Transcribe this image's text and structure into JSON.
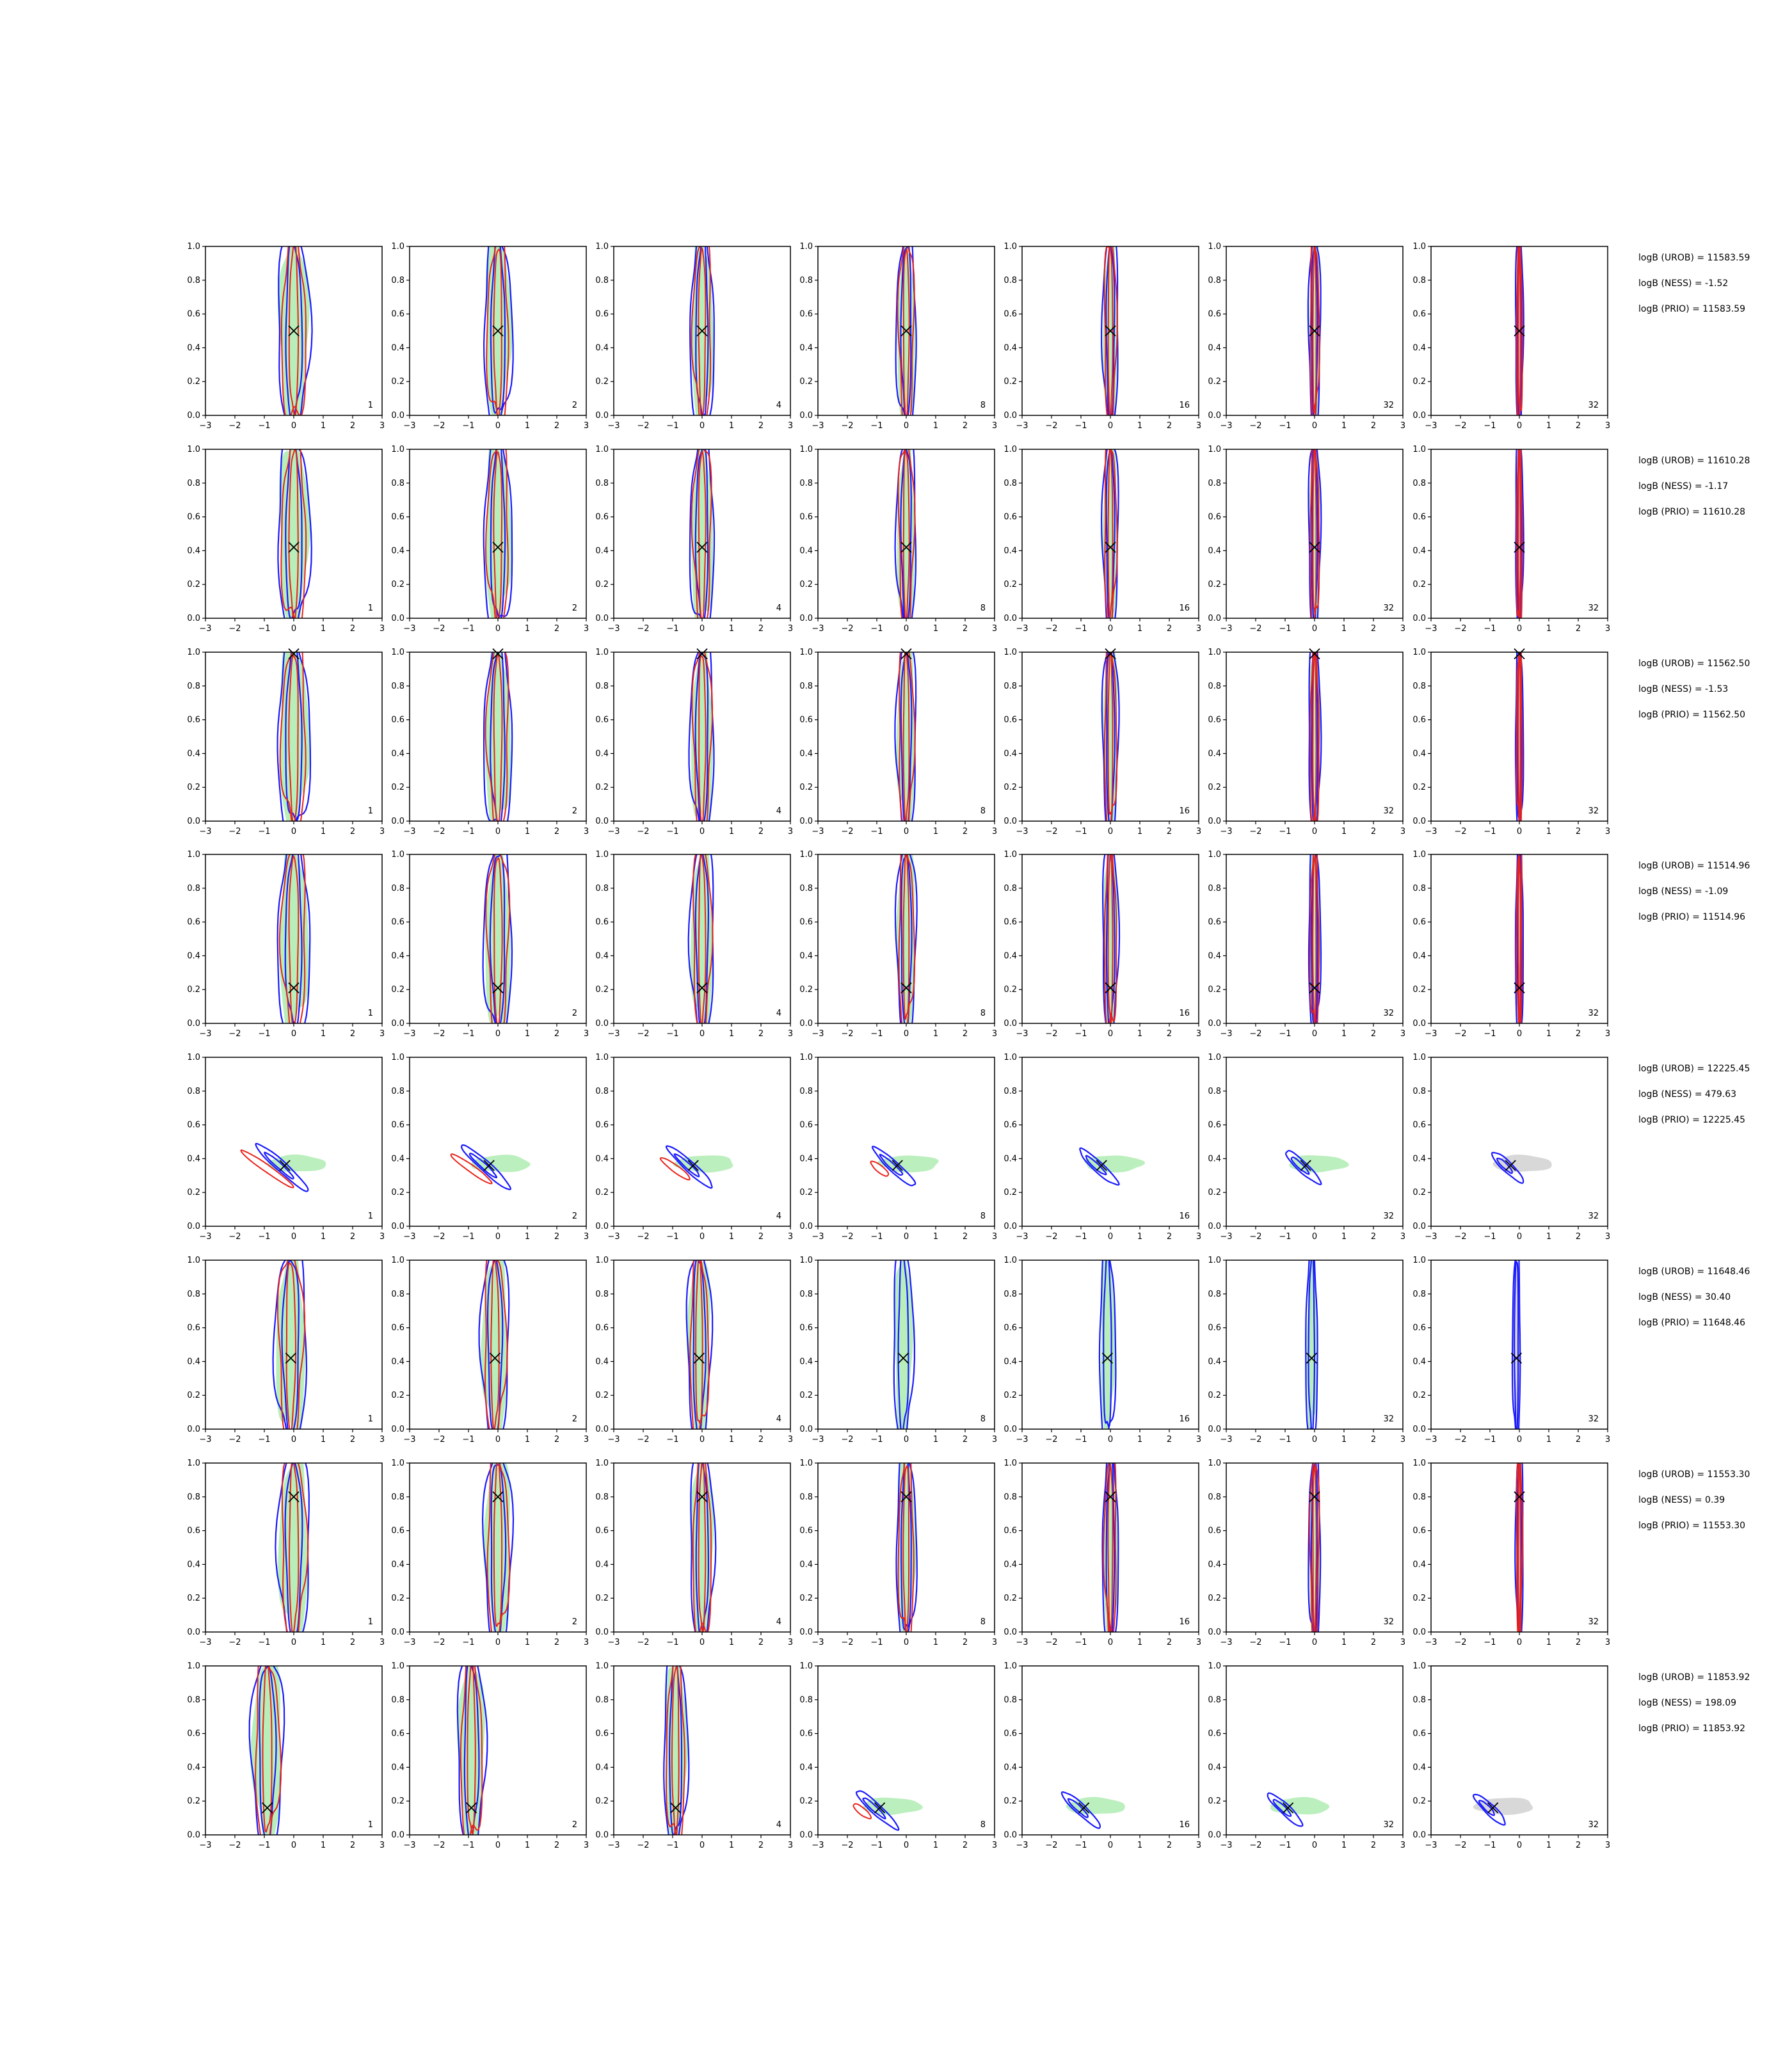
{
  "figure": {
    "colors": {
      "frame": "#000000",
      "blue_contour": "#1a1aff",
      "red_contour": "#e8231b",
      "green_fill": "#9fe8a3",
      "gray_fill": "#c8c8c8",
      "marker": "#000000",
      "background": "#ffffff"
    }
  },
  "chart_data": [
    {
      "row": 1,
      "type": "contour",
      "x_range": [
        -3,
        3
      ],
      "y_range": [
        0,
        1
      ],
      "x_ticks": [
        "−3",
        "−2",
        "−1",
        "0",
        "1",
        "2",
        "3"
      ],
      "y_ticks": [
        "0.0",
        "0.2",
        "0.4",
        "0.6",
        "0.8",
        "1.0"
      ],
      "true_value": [
        0.0,
        0.5
      ],
      "panel_labels": [
        "1",
        "2",
        "4",
        "8",
        "16",
        "32",
        "32"
      ],
      "annotations": [
        "logB (UROB) = 11583.59",
        "logB (NESS) = -1.52",
        "logB (PRIO) = 11583.59"
      ]
    },
    {
      "row": 2,
      "type": "contour",
      "x_range": [
        -3,
        3
      ],
      "y_range": [
        0,
        1
      ],
      "true_value": [
        0.0,
        0.42
      ],
      "panel_labels": [
        "1",
        "2",
        "4",
        "8",
        "16",
        "32",
        "32"
      ],
      "annotations": [
        "logB (UROB) = 11610.28",
        "logB (NESS) = -1.17",
        "logB (PRIO) = 11610.28"
      ]
    },
    {
      "row": 3,
      "type": "contour",
      "x_range": [
        -3,
        3
      ],
      "y_range": [
        0,
        1
      ],
      "true_value": [
        0.0,
        0.99
      ],
      "panel_labels": [
        "1",
        "2",
        "4",
        "8",
        "16",
        "32",
        "32"
      ],
      "annotations": [
        "logB (UROB) = 11562.50",
        "logB (NESS) = -1.53",
        "logB (PRIO) = 11562.50"
      ]
    },
    {
      "row": 4,
      "type": "contour",
      "x_range": [
        -3,
        3
      ],
      "y_range": [
        0,
        1
      ],
      "true_value": [
        0.0,
        0.21
      ],
      "panel_labels": [
        "1",
        "2",
        "4",
        "8",
        "16",
        "32",
        "32"
      ],
      "annotations": [
        "logB (UROB) = 11514.96",
        "logB (NESS) = -1.09",
        "logB (PRIO) = 11514.96"
      ]
    },
    {
      "row": 5,
      "type": "contour",
      "x_range": [
        -3,
        3
      ],
      "y_range": [
        0,
        1
      ],
      "true_value": [
        -0.3,
        0.36
      ],
      "panel_labels": [
        "1",
        "2",
        "4",
        "8",
        "16",
        "32",
        "32"
      ],
      "annotations": [
        "logB (UROB) = 12225.45",
        "logB (NESS) = 479.63",
        "logB (PRIO) = 12225.45"
      ]
    },
    {
      "row": 6,
      "type": "contour",
      "x_range": [
        -3,
        3
      ],
      "y_range": [
        0,
        1
      ],
      "true_value": [
        -0.1,
        0.42
      ],
      "panel_labels": [
        "1",
        "2",
        "4",
        "8",
        "16",
        "32",
        "32"
      ],
      "annotations": [
        "logB (UROB) = 11648.46",
        "logB (NESS) = 30.40",
        "logB (PRIO) = 11648.46"
      ]
    },
    {
      "row": 7,
      "type": "contour",
      "x_range": [
        -3,
        3
      ],
      "y_range": [
        0,
        1
      ],
      "true_value": [
        0.0,
        0.8
      ],
      "panel_labels": [
        "1",
        "2",
        "4",
        "8",
        "16",
        "32",
        "32"
      ],
      "annotations": [
        "logB (UROB) = 11553.30",
        "logB (NESS) = 0.39",
        "logB (PRIO) = 11553.30"
      ]
    },
    {
      "row": 8,
      "type": "contour",
      "x_range": [
        -3,
        3
      ],
      "y_range": [
        0,
        1
      ],
      "true_value": [
        -0.9,
        0.16
      ],
      "panel_labels": [
        "1",
        "2",
        "4",
        "8",
        "16",
        "32",
        "32"
      ],
      "annotations": [
        "logB (UROB) = 11853.92",
        "logB (NESS) = 198.09",
        "logB (PRIO) = 11853.92"
      ]
    }
  ]
}
